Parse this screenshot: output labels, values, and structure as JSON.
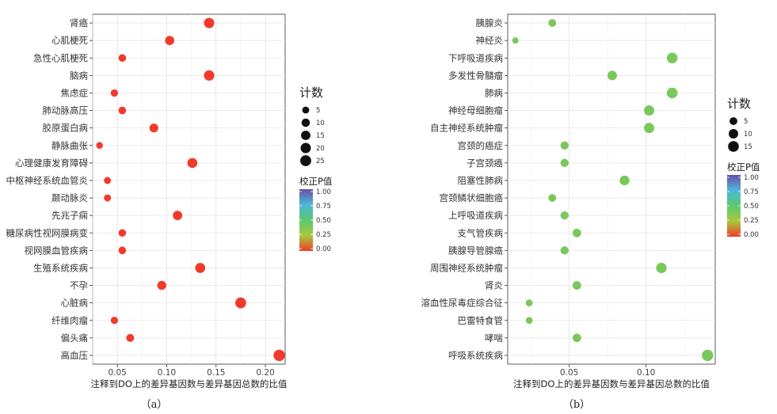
{
  "chart_data": [
    {
      "type": "scatter",
      "panel_label": "（a）",
      "xlabel": "注释到DO上的差异基因数与差异基因总数的比值",
      "ylabel": "",
      "xlim": [
        0.025,
        0.22
      ],
      "xticks": [
        0.05,
        0.1,
        0.15,
        0.2
      ],
      "xtick_labels": [
        "0.05",
        "0.10",
        "0.15",
        "0.20"
      ],
      "grid": true,
      "size_legend": {
        "title": "计数",
        "values": [
          5,
          10,
          15,
          20,
          25
        ],
        "labels": [
          "5",
          "10",
          "15",
          "20",
          "25"
        ]
      },
      "color_legend": {
        "title": "校正P值",
        "ticks": [
          "1.00",
          "0.75",
          "0.50",
          "0.25",
          "0.00"
        ]
      },
      "points": [
        {
          "category": "肾癌",
          "x": 0.143,
          "count": 21,
          "padj": 0.0
        },
        {
          "category": "心肌梗死",
          "x": 0.103,
          "count": 14,
          "padj": 0.0
        },
        {
          "category": "急性心肌梗死",
          "x": 0.055,
          "count": 7,
          "padj": 0.0
        },
        {
          "category": "脑病",
          "x": 0.143,
          "count": 21,
          "padj": 0.0
        },
        {
          "category": "焦虑症",
          "x": 0.047,
          "count": 6,
          "padj": 0.0
        },
        {
          "category": "肺动脉高压",
          "x": 0.055,
          "count": 7,
          "padj": 0.0
        },
        {
          "category": "胶原蛋白病",
          "x": 0.087,
          "count": 12,
          "padj": 0.0
        },
        {
          "category": "静脉曲张",
          "x": 0.032,
          "count": 4,
          "padj": 0.0
        },
        {
          "category": "心理健康发育障碍",
          "x": 0.126,
          "count": 18,
          "padj": 0.0
        },
        {
          "category": "中枢神经系统血管炎",
          "x": 0.04,
          "count": 5,
          "padj": 0.0
        },
        {
          "category": "颞动脉炎",
          "x": 0.04,
          "count": 5,
          "padj": 0.0
        },
        {
          "category": "先兆子痫",
          "x": 0.111,
          "count": 15,
          "padj": 0.0
        },
        {
          "category": "糖尿病性视网膜病变",
          "x": 0.055,
          "count": 7,
          "padj": 0.0
        },
        {
          "category": "视网膜血管疾病",
          "x": 0.055,
          "count": 7,
          "padj": 0.0
        },
        {
          "category": "生殖系统疾病",
          "x": 0.134,
          "count": 19,
          "padj": 0.0
        },
        {
          "category": "不孕",
          "x": 0.095,
          "count": 13,
          "padj": 0.0
        },
        {
          "category": "心脏病",
          "x": 0.175,
          "count": 24,
          "padj": 0.0
        },
        {
          "category": "纤维肉瘤",
          "x": 0.047,
          "count": 6,
          "padj": 0.0
        },
        {
          "category": "偏头痛",
          "x": 0.063,
          "count": 8,
          "padj": 0.0
        },
        {
          "category": "高血压",
          "x": 0.214,
          "count": 28,
          "padj": 0.0
        }
      ]
    },
    {
      "type": "scatter",
      "panel_label": "（b）",
      "xlabel": "注释到DO上的差异基因数与差异基因总数的比值",
      "ylabel": "",
      "xlim": [
        0.01,
        0.145
      ],
      "xticks": [
        0.05,
        0.1
      ],
      "xtick_labels": [
        "0.05",
        "0.10"
      ],
      "grid": true,
      "size_legend": {
        "title": "计数",
        "values": [
          5,
          10,
          15
        ],
        "labels": [
          "5",
          "10",
          "15"
        ]
      },
      "color_legend": {
        "title": "校正P值",
        "ticks": [
          "1.00",
          "0.75",
          "0.50",
          "0.25",
          "0.00"
        ]
      },
      "points": [
        {
          "category": "胰腺炎",
          "x": 0.039,
          "count": 5,
          "padj": 0.4
        },
        {
          "category": "神经炎",
          "x": 0.015,
          "count": 2,
          "padj": 0.4
        },
        {
          "category": "下呼吸道疾病",
          "x": 0.117,
          "count": 15,
          "padj": 0.4
        },
        {
          "category": "多发性骨髓瘤",
          "x": 0.078,
          "count": 10,
          "padj": 0.4
        },
        {
          "category": "肺病",
          "x": 0.117,
          "count": 15,
          "padj": 0.4
        },
        {
          "category": "神经母细胞瘤",
          "x": 0.102,
          "count": 13,
          "padj": 0.4
        },
        {
          "category": "自主神经系统肿瘤",
          "x": 0.102,
          "count": 13,
          "padj": 0.4
        },
        {
          "category": "宫颈的癌症",
          "x": 0.047,
          "count": 6,
          "padj": 0.4
        },
        {
          "category": "子宫颈癌",
          "x": 0.047,
          "count": 6,
          "padj": 0.4
        },
        {
          "category": "阻塞性肺病",
          "x": 0.086,
          "count": 11,
          "padj": 0.4
        },
        {
          "category": "宫颈鳞状细胞癌",
          "x": 0.039,
          "count": 5,
          "padj": 0.4
        },
        {
          "category": "上呼吸道疾病",
          "x": 0.047,
          "count": 6,
          "padj": 0.4
        },
        {
          "category": "支气管疾病",
          "x": 0.055,
          "count": 7,
          "padj": 0.4
        },
        {
          "category": "胰腺导管腺癌",
          "x": 0.047,
          "count": 6,
          "padj": 0.4
        },
        {
          "category": "周围神经系统肿瘤",
          "x": 0.11,
          "count": 14,
          "padj": 0.4
        },
        {
          "category": "肾炎",
          "x": 0.055,
          "count": 7,
          "padj": 0.4
        },
        {
          "category": "溶血性尿毒症综合征",
          "x": 0.024,
          "count": 3,
          "padj": 0.4
        },
        {
          "category": "巴雷特食管",
          "x": 0.024,
          "count": 3,
          "padj": 0.4
        },
        {
          "category": "哮喘",
          "x": 0.055,
          "count": 7,
          "padj": 0.4
        },
        {
          "category": "呼吸系统疾病",
          "x": 0.14,
          "count": 18,
          "padj": 0.4
        }
      ]
    }
  ]
}
